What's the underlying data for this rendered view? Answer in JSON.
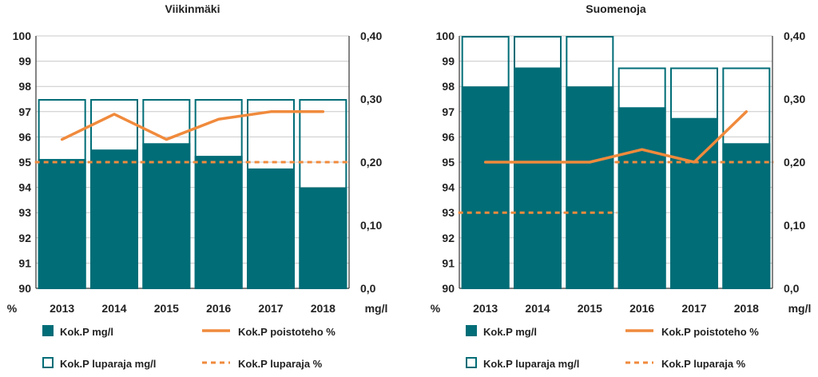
{
  "colors": {
    "bar": "#006d77",
    "line": "#f08a3c",
    "grid": "#c9c9c9",
    "axis": "#333333",
    "text": "#222222"
  },
  "legend": {
    "bar_label": "Kok.P mg/l",
    "line_label": "Kok.P poistoteho %",
    "limit_bar_label": "Kok.P luparaja mg/l",
    "limit_line_label": "Kok.P luparaja %"
  },
  "chart_data": [
    {
      "type": "bar",
      "title": "Viikinmäki",
      "categories": [
        "2013",
        "2014",
        "2015",
        "2016",
        "2017",
        "2018"
      ],
      "left_axis_unit": "%",
      "right_axis_unit": "mg/l",
      "left_ylim": [
        90,
        100
      ],
      "right_ylim": [
        0,
        0.4
      ],
      "left_ticks": [
        "90",
        "91",
        "92",
        "93",
        "94",
        "95",
        "96",
        "97",
        "98",
        "99",
        "100"
      ],
      "right_ticks": [
        "0,0",
        "0,10",
        "0,20",
        "0,30",
        "0,40"
      ],
      "grid": true,
      "series": [
        {
          "name": "Kok.P mg/l",
          "axis": "right",
          "kind": "bar",
          "values": [
            0.205,
            0.22,
            0.23,
            0.21,
            0.19,
            0.16
          ]
        },
        {
          "name": "Kok.P luparaja mg/l",
          "axis": "right",
          "kind": "outline",
          "values": [
            0.3,
            0.3,
            0.3,
            0.3,
            0.3,
            0.3
          ]
        },
        {
          "name": "Kok.P poistoteho %",
          "axis": "left",
          "kind": "line",
          "values": [
            95.9,
            96.9,
            95.9,
            96.7,
            97.0,
            97.0
          ]
        },
        {
          "name": "Kok.P luparaja %",
          "axis": "left",
          "kind": "dashed",
          "values": [
            95,
            95,
            95,
            95,
            95,
            95
          ]
        }
      ]
    },
    {
      "type": "bar",
      "title": "Suomenoja",
      "categories": [
        "2013",
        "2014",
        "2015",
        "2016",
        "2017",
        "2018"
      ],
      "left_axis_unit": "%",
      "right_axis_unit": "mg/l",
      "left_ylim": [
        90,
        100
      ],
      "right_ylim": [
        0,
        0.4
      ],
      "left_ticks": [
        "90",
        "91",
        "92",
        "93",
        "94",
        "95",
        "96",
        "97",
        "98",
        "99",
        "100"
      ],
      "right_ticks": [
        "0,0",
        "0,10",
        "0,20",
        "0,30",
        "0,40"
      ],
      "grid": true,
      "series": [
        {
          "name": "Kok.P mg/l",
          "axis": "right",
          "kind": "bar",
          "values": [
            0.32,
            0.35,
            0.32,
            0.287,
            0.27,
            0.23
          ]
        },
        {
          "name": "Kok.P luparaja mg/l",
          "axis": "right",
          "kind": "outline",
          "values": [
            0.4,
            0.4,
            0.4,
            0.35,
            0.35,
            0.35
          ]
        },
        {
          "name": "Kok.P poistoteho %",
          "axis": "left",
          "kind": "line",
          "values": [
            95.0,
            95.0,
            95.0,
            95.5,
            95.0,
            97.0
          ]
        },
        {
          "name": "Kok.P luparaja %",
          "axis": "left",
          "kind": "dashed",
          "values": [
            93,
            93,
            93,
            95,
            95,
            95
          ],
          "segments": [
            [
              0,
              2
            ],
            [
              3,
              5
            ]
          ]
        }
      ]
    }
  ]
}
